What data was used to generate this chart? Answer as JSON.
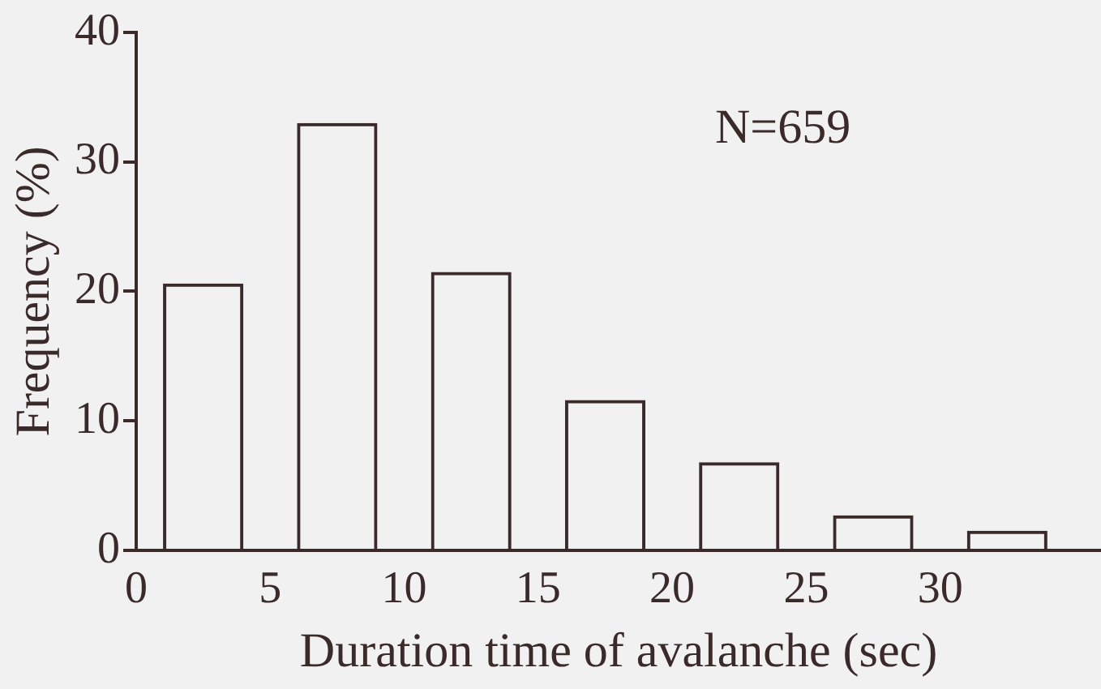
{
  "chart_data": {
    "type": "bar",
    "xlabel": "Duration time of avalanche (sec)",
    "ylabel": "Frequency (%)",
    "annotations": [
      "N=659"
    ],
    "x": [
      2.5,
      7.5,
      12.5,
      17.5,
      22.5,
      27.5,
      32.5
    ],
    "values": [
      20.6,
      33,
      21.5,
      11.6,
      6.8,
      2.7,
      1.5
    ],
    "color": "#3a2a2a",
    "xlim": [
      0,
      36
    ],
    "xticks": [
      0,
      5,
      10,
      15,
      20,
      25,
      30
    ],
    "ylim": [
      0,
      40
    ],
    "yticks": [
      0,
      10,
      20,
      30,
      40
    ],
    "grid": false,
    "legend": false
  }
}
